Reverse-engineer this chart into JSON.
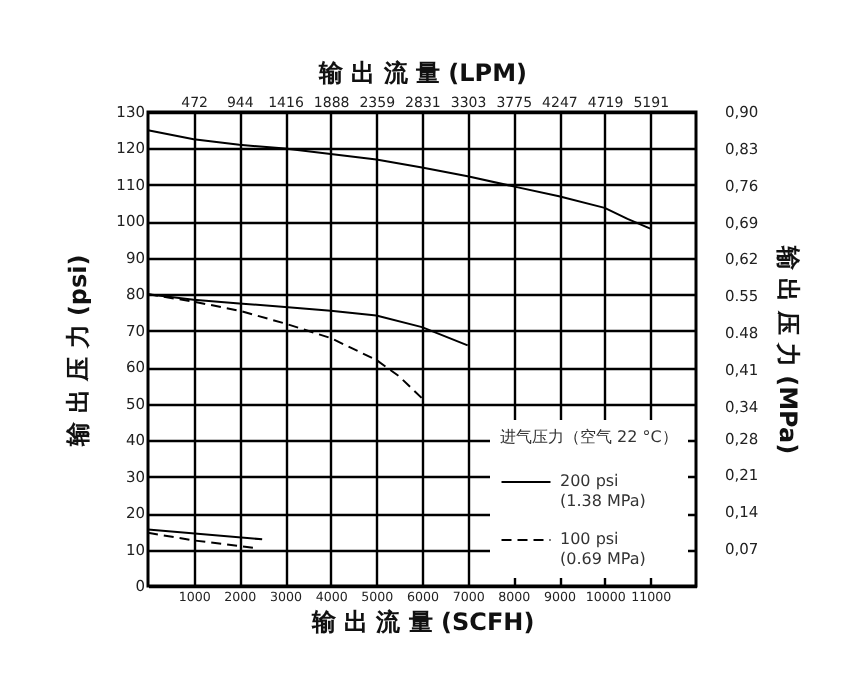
{
  "chart_data": {
    "type": "line",
    "xlabel": "输 出 流 量 (SCFH)",
    "x2label": "输 出 流 量 (LPM)",
    "ylabel": "输 出 压 力 (psi)",
    "y2label": "输 出 压 力 (MPa)",
    "legend_title": "进气压力（空气 22 °C）",
    "xlim": [
      0,
      12000
    ],
    "xticks": [
      1000,
      2000,
      3000,
      4000,
      5000,
      6000,
      7000,
      8000,
      9000,
      10000,
      11000
    ],
    "x2lim": [
      0,
      5664
    ],
    "x2ticks": [
      472,
      944,
      1416,
      1888,
      2359,
      2831,
      3303,
      3775,
      4247,
      4719,
      5191
    ],
    "ylim": [
      0,
      130
    ],
    "yticks": [
      0,
      10,
      20,
      30,
      40,
      50,
      60,
      70,
      80,
      90,
      100,
      110,
      120,
      130
    ],
    "y2lim": [
      0,
      0.9
    ],
    "y2ticks": [
      {
        "value": 0.07,
        "label": "0,07"
      },
      {
        "value": 0.14,
        "label": "0,14"
      },
      {
        "value": 0.21,
        "label": "0,21"
      },
      {
        "value": 0.28,
        "label": "0,28"
      },
      {
        "value": 0.34,
        "label": "0,34"
      },
      {
        "value": 0.41,
        "label": "0,41"
      },
      {
        "value": 0.48,
        "label": "0.48"
      },
      {
        "value": 0.55,
        "label": "0.55"
      },
      {
        "value": 0.62,
        "label": "0,62"
      },
      {
        "value": 0.69,
        "label": "0,69"
      },
      {
        "value": 0.76,
        "label": "0,76"
      },
      {
        "value": 0.83,
        "label": "0,83"
      },
      {
        "value": 0.9,
        "label": "0,90"
      }
    ],
    "grid": true,
    "legend": "bottom right",
    "marker": "none",
    "series": [
      {
        "name": "200 psi\n(1.38 MPa)",
        "color": "#000000",
        "line_style": "solid",
        "x": [
          0,
          1000,
          2000,
          3000,
          4000,
          5000,
          6000,
          7000,
          8000,
          9000,
          10000,
          10500,
          11000
        ],
        "values": [
          125,
          122.5,
          121,
          120,
          118.5,
          117,
          114.8,
          112.4,
          109.6,
          106.9,
          103.7,
          100.7,
          98
        ]
      },
      {
        "name": "100 psi\n(0.69 MPa)",
        "color": "#000000",
        "line_style": "dashed",
        "x": [
          0,
          1000,
          2000,
          3000,
          4000,
          5000,
          5500,
          6000
        ],
        "values": [
          80,
          78,
          75.5,
          72,
          68,
          62,
          57.5,
          51.5
        ]
      },
      {
        "color": "#000000",
        "line_style": "solid",
        "x": [
          0,
          1000,
          2000,
          3000,
          4000,
          5000,
          6000,
          7000
        ],
        "values": [
          80,
          78.5,
          77.5,
          76.5,
          75.5,
          74.2,
          71,
          66
        ]
      },
      {
        "color": "#000000",
        "line_style": "solid",
        "x": [
          0,
          2500
        ],
        "values": [
          15.5,
          12.8
        ]
      },
      {
        "color": "#000000",
        "line_style": "dashed",
        "x": [
          0,
          1000,
          2300
        ],
        "values": [
          14.6,
          12.5,
          10.5
        ]
      }
    ]
  }
}
